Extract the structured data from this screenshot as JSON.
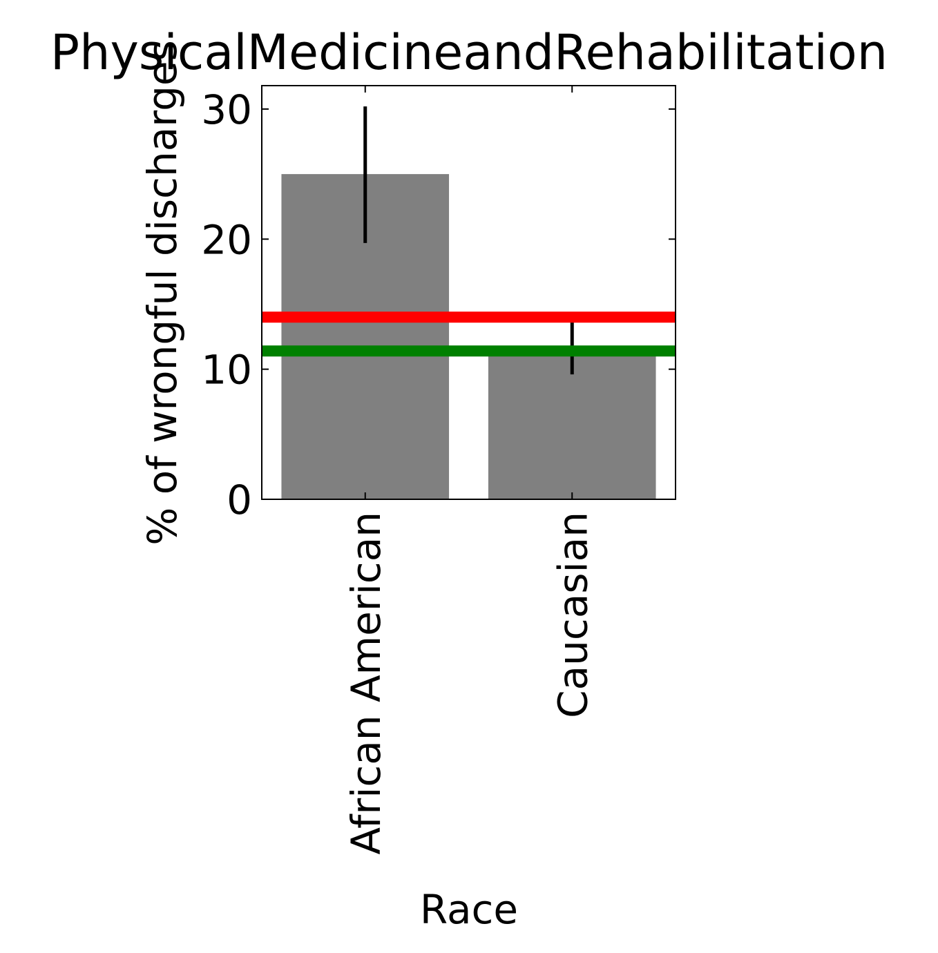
{
  "chart_data": {
    "type": "bar",
    "title": "PhysicalMedicineandRehabilitation",
    "xlabel": "Race",
    "ylabel": "% of wrongful discharges",
    "categories": [
      "African American",
      "Caucasian"
    ],
    "values": [
      25.0,
      11.8
    ],
    "error_bars": [
      {
        "low": 19.7,
        "high": 30.2
      },
      {
        "low": 9.6,
        "high": 13.6
      }
    ],
    "reference_lines": [
      {
        "value": 14.0,
        "color": "#ff0000"
      },
      {
        "value": 11.4,
        "color": "#008000"
      }
    ],
    "yticks": [
      0,
      10,
      20,
      30
    ],
    "ylim": [
      0,
      31.8
    ],
    "bar_color": "#808080",
    "grid": false
  }
}
